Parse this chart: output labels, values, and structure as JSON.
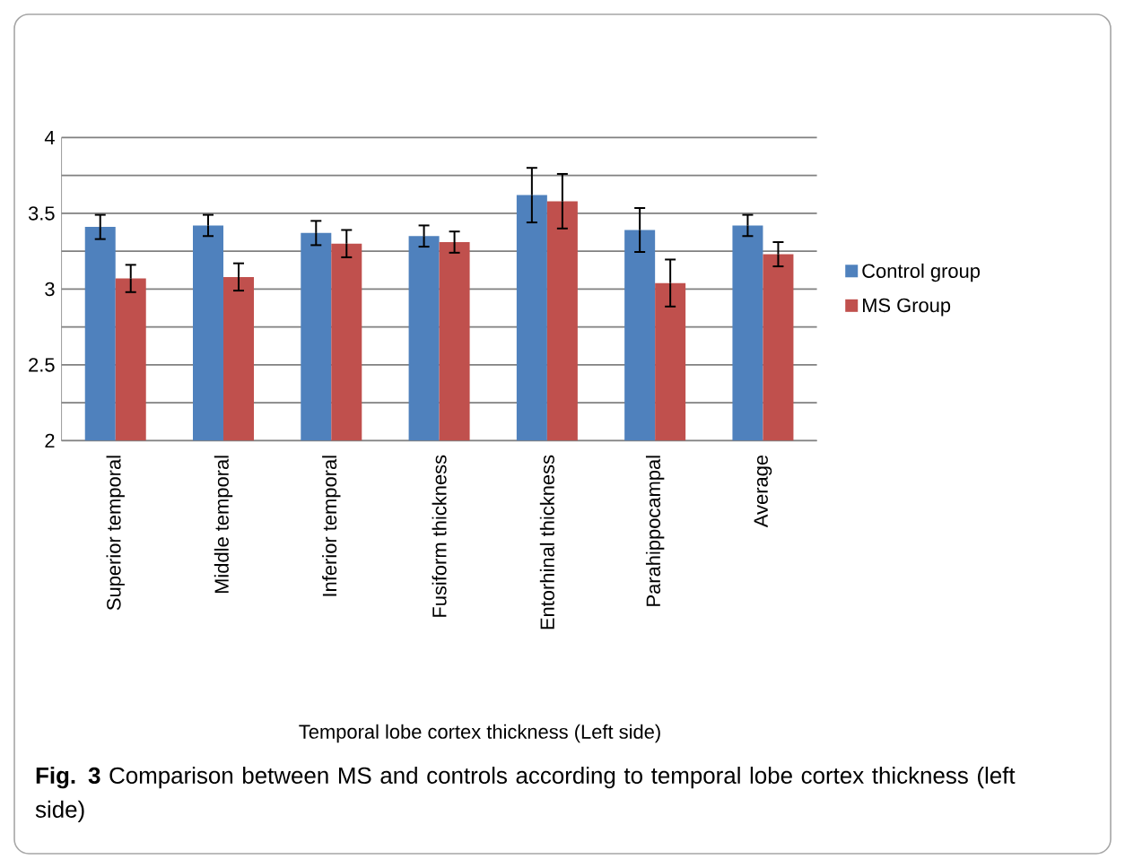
{
  "chart_data": {
    "type": "bar",
    "categories": [
      "Superior temporal",
      "Middle temporal",
      "Inferior temporal",
      "Fusiform thickness",
      "Entorhinal thickness",
      "Parahippocampal",
      "Average"
    ],
    "series": [
      {
        "name": "Control group",
        "color": "#4f81bd",
        "values": [
          3.41,
          3.42,
          3.37,
          3.35,
          3.62,
          3.39,
          3.42
        ],
        "errors": [
          0.08,
          0.07,
          0.08,
          0.07,
          0.18,
          0.145,
          0.07
        ]
      },
      {
        "name": "MS Group",
        "color": "#c0504d",
        "values": [
          3.07,
          3.08,
          3.3,
          3.31,
          3.58,
          3.04,
          3.23
        ],
        "errors": [
          0.09,
          0.09,
          0.09,
          0.07,
          0.18,
          0.155,
          0.08
        ]
      }
    ],
    "xlabel": "Temporal lobe cortex thickness (Left side)",
    "ylim": [
      2,
      4
    ],
    "yticks": [
      2,
      {
        "value": 2.25,
        "label": null
      },
      {
        "value": 2.5,
        "label": "2.5"
      },
      {
        "value": 2.75,
        "label": null
      },
      3,
      {
        "value": 3.25,
        "label": null
      },
      {
        "value": 3.5,
        "label": "3.5"
      },
      {
        "value": 3.75,
        "label": null
      },
      4
    ],
    "grid": "y",
    "legend": "right",
    "annotations": [
      "**Fig. 3** Comparison between MS and controls according to temporal lobe cortex thickness (left side)"
    ]
  }
}
